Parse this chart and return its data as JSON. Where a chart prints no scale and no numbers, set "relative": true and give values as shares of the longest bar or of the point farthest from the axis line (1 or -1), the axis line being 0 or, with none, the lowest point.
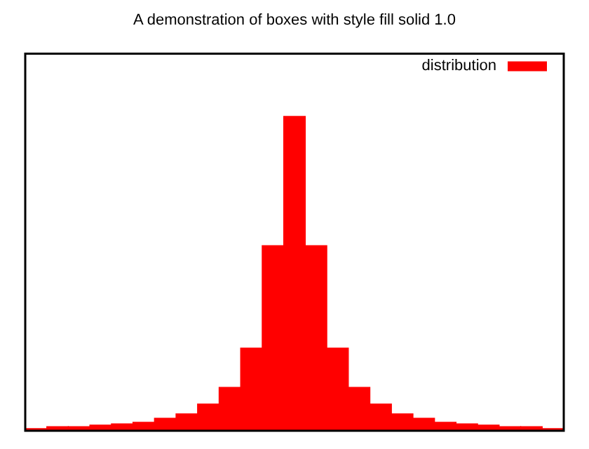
{
  "chart_data": {
    "type": "bar",
    "title": "A demonstration of boxes with style fill solid 1.0",
    "relative": true,
    "legend": "top right",
    "categories": [
      null,
      null,
      null,
      null,
      null,
      null,
      null,
      null,
      null,
      null,
      null,
      null,
      null,
      null,
      null,
      null,
      null,
      null,
      null,
      null,
      null,
      null,
      null,
      null,
      null
    ],
    "series": [
      {
        "name": "distribution",
        "color": "#ff0000",
        "values": [
          0.007,
          0.013,
          0.013,
          0.018,
          0.022,
          0.027,
          0.04,
          0.054,
          0.085,
          0.138,
          0.263,
          0.589,
          1,
          0.589,
          0.263,
          0.138,
          0.085,
          0.054,
          0.04,
          0.027,
          0.022,
          0.018,
          0.013,
          0.013,
          0.007
        ]
      }
    ]
  }
}
